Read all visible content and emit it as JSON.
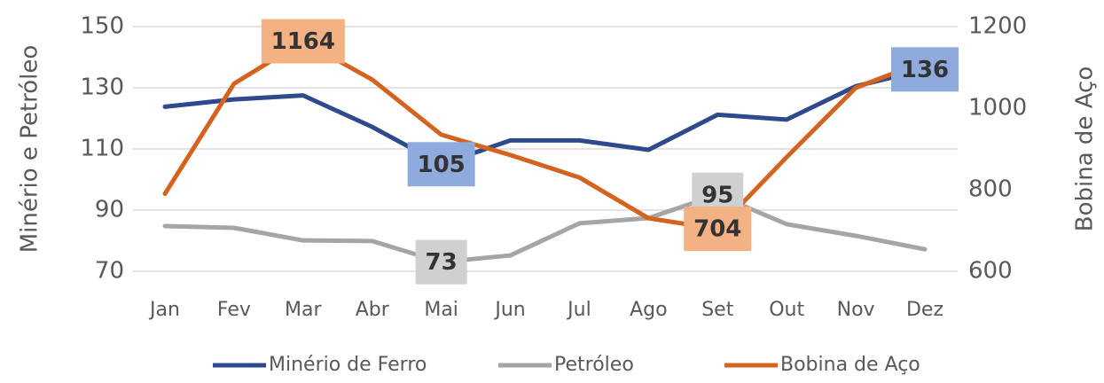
{
  "chart_data": {
    "type": "line",
    "categories": [
      "Jan",
      "Fev",
      "Mar",
      "Abr",
      "Mai",
      "Jun",
      "Jul",
      "Ago",
      "Set",
      "Out",
      "Nov",
      "Dez"
    ],
    "y_label": "Minério e Petróleo",
    "y2_label": "Bobina de Aço",
    "ylim": [
      70,
      150
    ],
    "yticks": [
      70,
      90,
      110,
      130,
      150
    ],
    "y2lim": [
      600,
      1200
    ],
    "y2ticks": [
      600,
      800,
      1000,
      1200
    ],
    "grid": true,
    "legend": "bottom",
    "series": [
      {
        "name": "Minério de Ferro",
        "color": "#2e4a8c",
        "label_color": "#8faadc",
        "axis": "y",
        "values": [
          123.8,
          126.2,
          127.5,
          117.2,
          105,
          112.8,
          112.8,
          109.7,
          121.2,
          119.6,
          130.5,
          136
        ],
        "value_labels": [
          null,
          null,
          null,
          null,
          "105",
          null,
          null,
          null,
          null,
          null,
          null,
          "136"
        ]
      },
      {
        "name": "Petróleo",
        "color": "#a5a5a5",
        "label_color": "#d0d0d0",
        "axis": "y",
        "values": [
          84.8,
          84.2,
          80.1,
          79.9,
          73,
          75.2,
          85.7,
          87.4,
          95,
          85.4,
          81.6,
          77.2
        ],
        "value_labels": [
          null,
          null,
          null,
          null,
          "73",
          null,
          null,
          null,
          "95",
          null,
          null,
          null
        ]
      },
      {
        "name": "Bobina de Aço",
        "color": "#d4631f",
        "label_color": "#f4b183",
        "axis": "y2",
        "values": [
          790,
          1060,
          1164,
          1070,
          935,
          885,
          830,
          730,
          704,
          880,
          1050,
          1115
        ],
        "value_labels": [
          null,
          null,
          "1164",
          null,
          null,
          null,
          null,
          null,
          "704",
          null,
          null,
          null
        ]
      }
    ]
  }
}
